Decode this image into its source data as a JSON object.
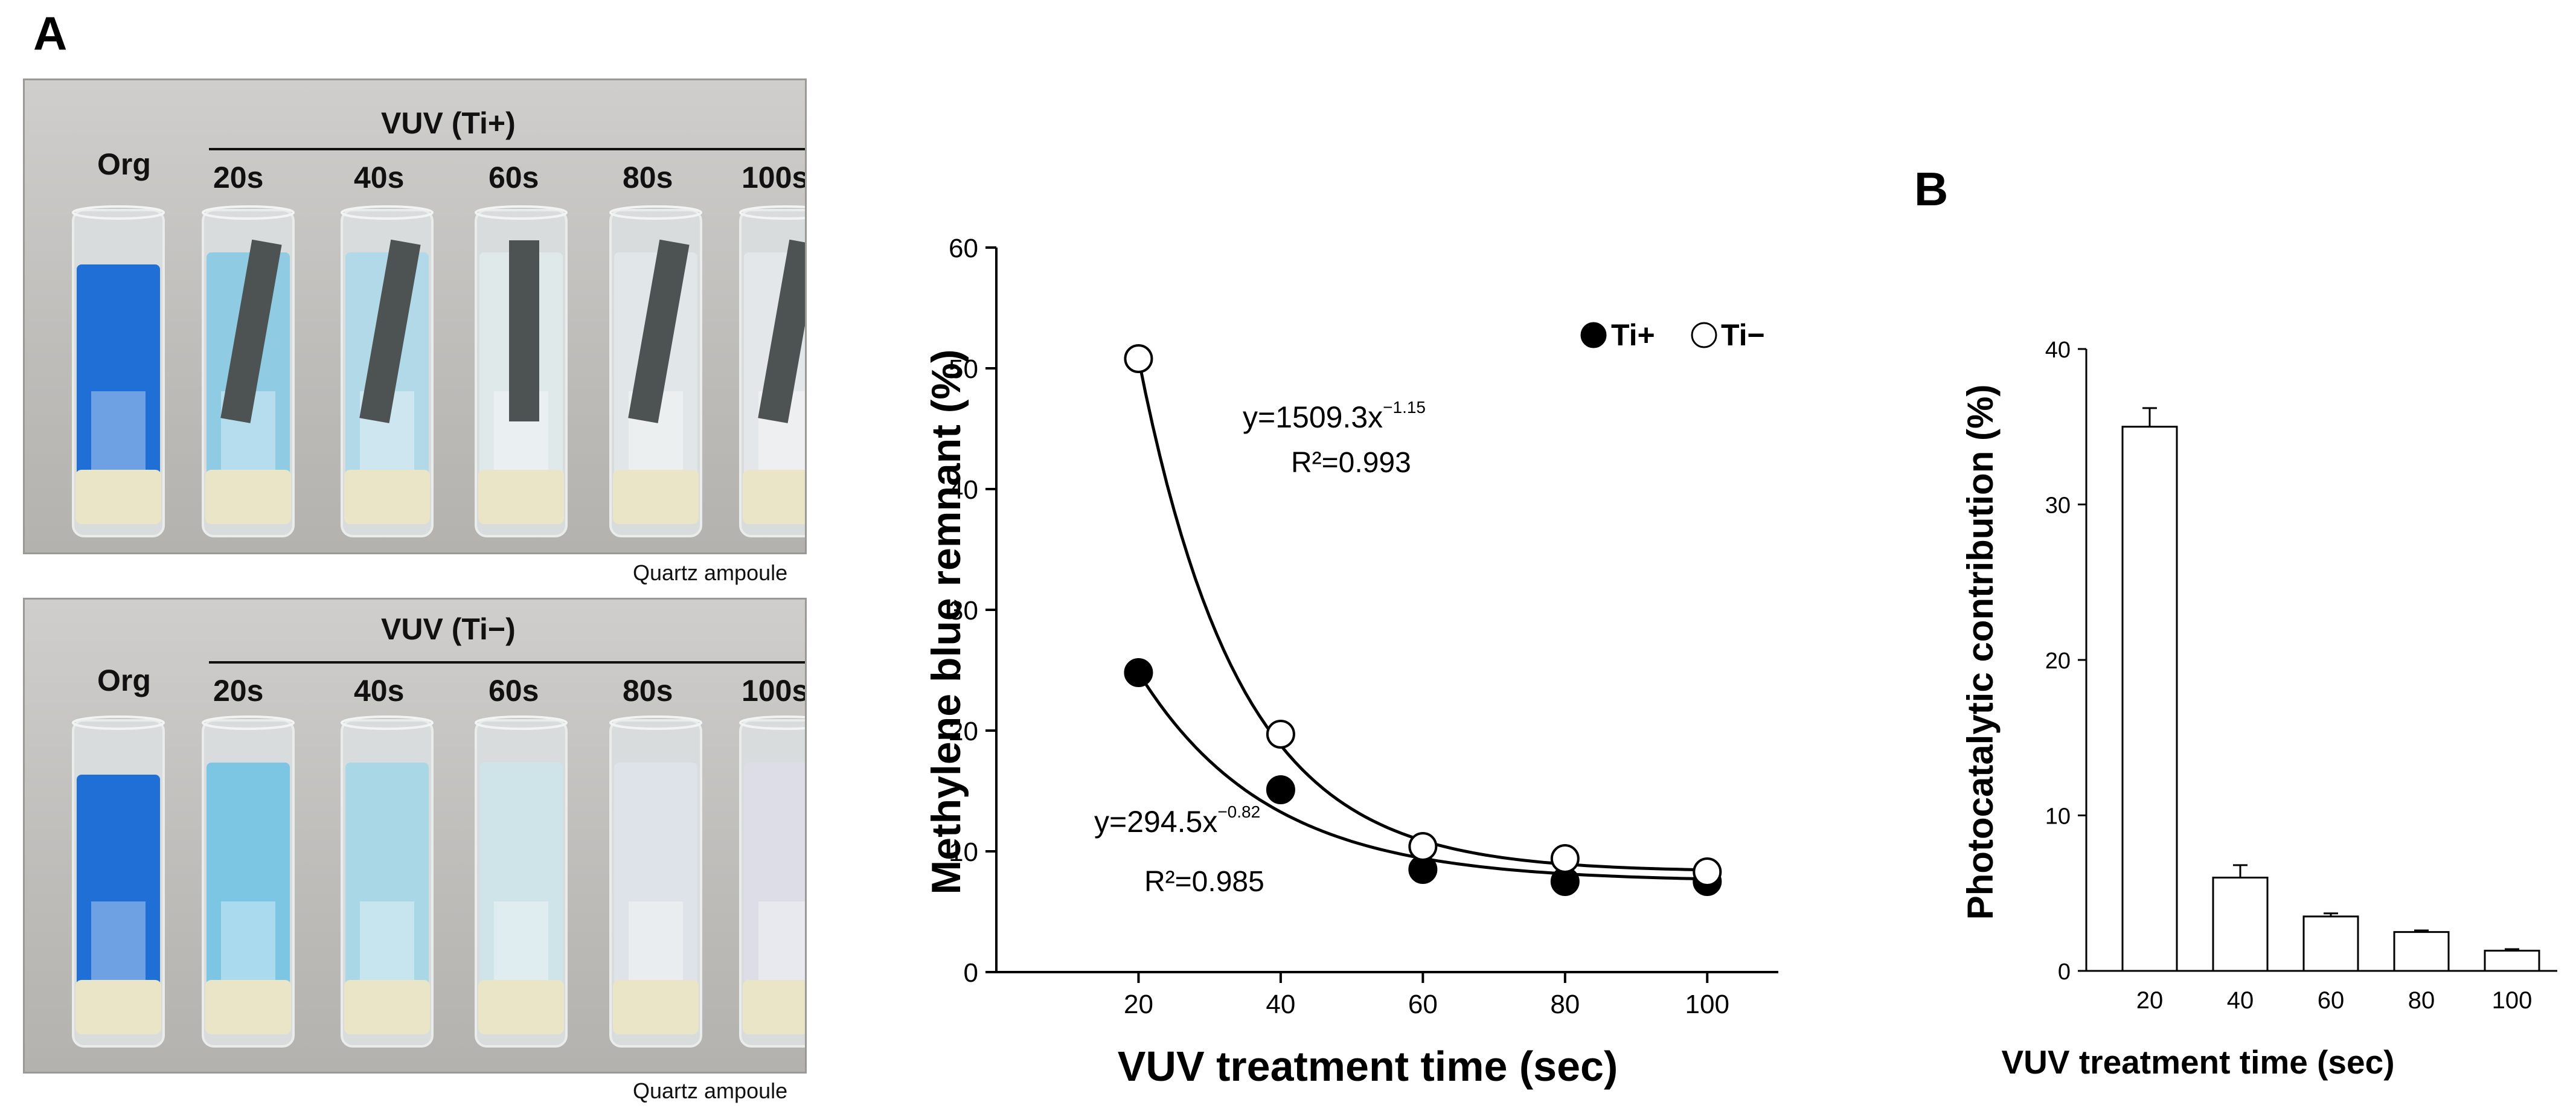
{
  "panel_a_label": "A",
  "panel_b_label": "B",
  "photos": [
    {
      "control_label": "Org",
      "group_label": "VUV (Ti+)",
      "time_labels": [
        "20s",
        "40s",
        "60s",
        "80s",
        "100s"
      ],
      "caption": "Quartz ampoule",
      "has_titanium": true,
      "liquid_colors": [
        "#1f6fd6",
        "#8fcbe3",
        "#b2d9e8",
        "#dfe9ea",
        "#e1e6e8",
        "#e4e7ea"
      ]
    },
    {
      "control_label": "Org",
      "group_label": "VUV (Ti−)",
      "time_labels": [
        "20s",
        "40s",
        "60s",
        "80s",
        "100s"
      ],
      "caption": "Quartz ampoule",
      "has_titanium": false,
      "liquid_colors": [
        "#1f6fd6",
        "#7cc6e4",
        "#a9d7e6",
        "#cfe4e8",
        "#dde3e8",
        "#dcdde6"
      ]
    }
  ],
  "chart_data": [
    {
      "type": "scatter",
      "title": "",
      "xlabel": "VUV treatment time (sec)",
      "ylabel": "Methylene blue remnant (%)",
      "xlim": [
        0,
        110
      ],
      "ylim": [
        0,
        60
      ],
      "xticks": [
        20,
        40,
        60,
        80,
        100
      ],
      "yticks": [
        0,
        10,
        20,
        30,
        40,
        50,
        60
      ],
      "legend_position": "top-right",
      "series": [
        {
          "name": "Ti+",
          "marker": "filled-circle",
          "x": [
            20,
            40,
            60,
            80,
            100
          ],
          "y": [
            24.8,
            15.1,
            8.5,
            7.5,
            7.5
          ],
          "fit": {
            "a": 294.5,
            "b": -0.82,
            "equation": "y=294.5x",
            "exponent": "−0.82",
            "r2": "R²=0.985"
          }
        },
        {
          "name": "Ti−",
          "marker": "open-circle",
          "x": [
            20,
            40,
            60,
            80,
            100
          ],
          "y": [
            50.8,
            19.7,
            10.4,
            9.4,
            8.3
          ],
          "fit": {
            "a": 1509.3,
            "b": -1.15,
            "equation": "y=1509.3x",
            "exponent": "−1.15",
            "r2": "R²=0.993"
          }
        }
      ],
      "grid": false
    },
    {
      "type": "bar",
      "title": "",
      "xlabel": "VUV treatment time (sec)",
      "ylabel": "Photocatalytic contribution (%)",
      "categories": [
        "20",
        "40",
        "60",
        "80",
        "100"
      ],
      "values": [
        35.0,
        6.0,
        3.5,
        2.5,
        1.3
      ],
      "errors": [
        1.2,
        0.8,
        0.2,
        0.1,
        0.1
      ],
      "ylim": [
        0,
        40
      ],
      "yticks": [
        0,
        10,
        20,
        30,
        40
      ],
      "grid": false
    }
  ]
}
